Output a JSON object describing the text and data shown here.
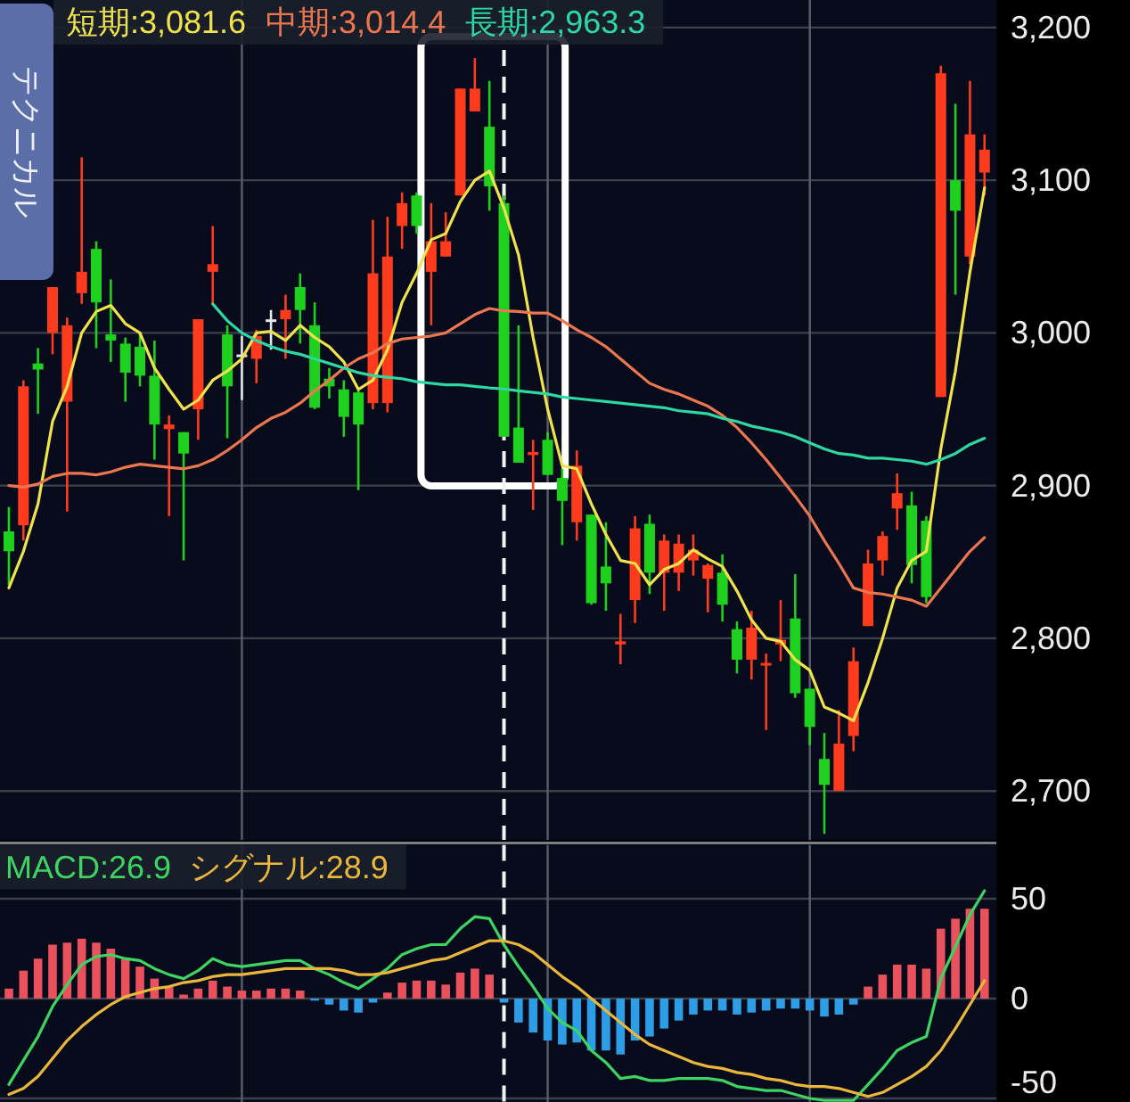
{
  "chart_data": [
    {
      "type": "candlestick",
      "categories": [
        null,
        null,
        null,
        null,
        null,
        null,
        null,
        null,
        null,
        null,
        null,
        null,
        null,
        null,
        null,
        null,
        null,
        null,
        null,
        null,
        null,
        null,
        null,
        null,
        null,
        null,
        null,
        null,
        null,
        null,
        null,
        null,
        null,
        null,
        null,
        null,
        null,
        null,
        null,
        null,
        null,
        null,
        null,
        null,
        null,
        null,
        null,
        null,
        null,
        null,
        null,
        null,
        null,
        null,
        null,
        null,
        null,
        null,
        null,
        null,
        null,
        null,
        null,
        null,
        null,
        null,
        null,
        null
      ],
      "ohlc": [
        [
          2870,
          2886,
          2835,
          2857
        ],
        [
          2874,
          2969,
          2864,
          2965
        ],
        [
          2980,
          2990,
          2947,
          2976
        ],
        [
          3000,
          3030,
          2986,
          3030
        ],
        [
          2955,
          3010,
          2883,
          3005
        ],
        [
          3026,
          3115,
          3019,
          3040
        ],
        [
          3055,
          3060,
          2990,
          3020
        ],
        [
          2999,
          3035,
          2981,
          2995
        ],
        [
          2993,
          2997,
          2955,
          2974
        ],
        [
          2991,
          3000,
          2965,
          2972
        ],
        [
          2972,
          2995,
          2917,
          2940
        ],
        [
          2937,
          2946,
          2880,
          2940
        ],
        [
          2935,
          2935,
          2851,
          2921
        ],
        [
          2950,
          3009,
          2930,
          3009
        ],
        [
          3040,
          3070,
          3019,
          3045
        ],
        [
          2999,
          3005,
          2931,
          2965
        ],
        [
          2985,
          2998,
          2956,
          2985
        ],
        [
          2983,
          3002,
          2967,
          2998
        ],
        [
          3008,
          3015,
          2989,
          3008
        ],
        [
          3009,
          3025,
          2983,
          3015
        ],
        [
          3030,
          3039,
          2993,
          3015
        ],
        [
          3005,
          3020,
          2950,
          2951
        ],
        [
          2970,
          2977,
          2957,
          2965
        ],
        [
          2963,
          2969,
          2932,
          2945
        ],
        [
          2961,
          2963,
          2897,
          2940
        ],
        [
          2954,
          3074,
          2950,
          3039
        ],
        [
          2954,
          3076,
          2948,
          3050
        ],
        [
          3070,
          3092,
          3055,
          3085
        ],
        [
          3090,
          3092,
          3065,
          3070
        ],
        [
          3040,
          3085,
          3005,
          3060
        ],
        [
          3050,
          3079,
          3050,
          3060
        ],
        [
          3090,
          3160,
          3090,
          3160
        ],
        [
          3145,
          3180,
          3145,
          3160
        ],
        [
          3135,
          3165,
          3080,
          3096
        ],
        [
          3085,
          3090,
          2932,
          2932
        ],
        [
          2938,
          3005,
          2915,
          2915
        ],
        [
          2920,
          2930,
          2884,
          2922
        ],
        [
          2930,
          2935,
          2907,
          2907
        ],
        [
          2905,
          2911,
          2861,
          2890
        ],
        [
          2876,
          2923,
          2864,
          2913
        ],
        [
          2881,
          2881,
          2822,
          2823
        ],
        [
          2847,
          2876,
          2818,
          2836
        ],
        [
          2796,
          2816,
          2783,
          2798
        ],
        [
          2825,
          2880,
          2810,
          2872
        ],
        [
          2875,
          2881,
          2829,
          2843
        ],
        [
          2843,
          2868,
          2818,
          2864
        ],
        [
          2843,
          2868,
          2831,
          2862
        ],
        [
          2851,
          2868,
          2841,
          2858
        ],
        [
          2839,
          2849,
          2817,
          2848
        ],
        [
          2843,
          2855,
          2811,
          2822
        ],
        [
          2806,
          2811,
          2777,
          2786
        ],
        [
          2786,
          2818,
          2773,
          2807
        ],
        [
          2782,
          2790,
          2740,
          2783
        ],
        [
          2796,
          2825,
          2785,
          2799
        ],
        [
          2813,
          2842,
          2761,
          2764
        ],
        [
          2767,
          2767,
          2730,
          2742
        ],
        [
          2721,
          2738,
          2672,
          2704
        ],
        [
          2700,
          2753,
          2700,
          2731
        ],
        [
          2736,
          2794,
          2726,
          2785
        ],
        [
          2808,
          2858,
          2808,
          2849
        ],
        [
          2851,
          2870,
          2841,
          2867
        ],
        [
          2885,
          2908,
          2871,
          2895
        ],
        [
          2887,
          2896,
          2836,
          2848
        ],
        [
          2877,
          2880,
          2823,
          2827
        ],
        [
          2958,
          3175,
          2958,
          3170
        ],
        [
          3100,
          3150,
          3025,
          3080
        ],
        [
          3050,
          3165,
          3045,
          3130
        ],
        [
          3105,
          3130,
          3090,
          3120
        ]
      ],
      "colors": [
        "#1fd11f",
        "#ff3b1e",
        "#1fd11f",
        "#ff3b1e",
        "#ff3b1e",
        "#ff3b1e",
        "#1fd11f",
        "#1fd11f",
        "#1fd11f",
        "#1fd11f",
        "#1fd11f",
        "#ff3b1e",
        "#1fd11f",
        "#ff3b1e",
        "#ff3b1e",
        "#1fd11f",
        "#e6e6e6",
        "#ff3b1e",
        "#e6e6e6",
        "#ff3b1e",
        "#1fd11f",
        "#1fd11f",
        "#1fd11f",
        "#1fd11f",
        "#1fd11f",
        "#ff3b1e",
        "#ff3b1e",
        "#ff3b1e",
        "#1fd11f",
        "#ff3b1e",
        "#ff3b1e",
        "#ff3b1e",
        "#ff3b1e",
        "#1fd11f",
        "#1fd11f",
        "#1fd11f",
        "#ff3b1e",
        "#1fd11f",
        "#1fd11f",
        "#ff3b1e",
        "#1fd11f",
        "#1fd11f",
        "#ff3b1e",
        "#ff3b1e",
        "#1fd11f",
        "#ff3b1e",
        "#ff3b1e",
        "#ff3b1e",
        "#ff3b1e",
        "#1fd11f",
        "#1fd11f",
        "#ff3b1e",
        "#ff3b1e",
        "#ff3b1e",
        "#1fd11f",
        "#1fd11f",
        "#1fd11f",
        "#ff3b1e",
        "#ff3b1e",
        "#ff3b1e",
        "#ff3b1e",
        "#ff3b1e",
        "#1fd11f",
        "#1fd11f",
        "#ff3b1e",
        "#1fd11f",
        "#ff3b1e",
        "#ff3b1e"
      ],
      "series": [
        {
          "type": "line",
          "name": "短期:3,081.6",
          "color": "#f0e24c",
          "values": [
            2833,
            2857,
            2888,
            2942,
            2965,
            3000,
            3014,
            3018,
            3006,
            3000,
            2977,
            2963,
            2950,
            2956,
            2969,
            2975,
            2983,
            3000,
            3001,
            2995,
            3005,
            2997,
            2991,
            2981,
            2963,
            2969,
            2989,
            3020,
            3039,
            3061,
            3065,
            3086,
            3100,
            3106,
            3081.6,
            3051,
            2997,
            2950,
            2913,
            2911,
            2888,
            2868,
            2851,
            2849,
            2835,
            2845,
            2849,
            2858,
            2852,
            2847,
            2831,
            2812,
            2800,
            2798,
            2786,
            2779,
            2755,
            2751,
            2746,
            2771,
            2800,
            2833,
            2851,
            2857,
            2924,
            2975,
            3040,
            3095
          ]
        },
        {
          "type": "line",
          "name": "中期:3,014.4",
          "color": "#ec7650",
          "values": [
            2900,
            2899,
            2901,
            2906,
            2908,
            2908,
            2907,
            2909,
            2912,
            2914,
            2913,
            2912,
            2911,
            2913,
            2917,
            2923,
            2930,
            2938,
            2944,
            2948,
            2954,
            2962,
            2969,
            2977,
            2983,
            2987,
            2993,
            2996,
            2997,
            2998,
            3000,
            3006,
            3012,
            3016,
            3014.4,
            3014,
            3013,
            3013,
            3008,
            3002,
            2997,
            2991,
            2983,
            2975,
            2967,
            2963,
            2960,
            2956,
            2952,
            2946,
            2938,
            2928,
            2917,
            2905,
            2893,
            2880,
            2864,
            2849,
            2833,
            2830,
            2829,
            2827,
            2825,
            2821,
            2833,
            2845,
            2857,
            2866
          ]
        },
        {
          "type": "line",
          "name": "長期:2,963.3",
          "color": "#2ed8a2",
          "values": [
            null,
            null,
            null,
            null,
            null,
            null,
            null,
            null,
            null,
            null,
            null,
            null,
            null,
            null,
            3019,
            3008,
            3000,
            2995,
            2991,
            2988,
            2986,
            2983,
            2980,
            2977,
            2974,
            2972,
            2971,
            2970,
            2968,
            2967,
            2966,
            2966,
            2965,
            2964,
            2963.3,
            2962,
            2961,
            2960,
            2958,
            2957,
            2956,
            2955,
            2954,
            2953,
            2952,
            2951,
            2949,
            2948,
            2947,
            2944,
            2942,
            2939,
            2937,
            2935,
            2932,
            2928,
            2924,
            2921,
            2920,
            2918,
            2918,
            2917,
            2916,
            2914,
            2917,
            2921,
            2927,
            2931
          ]
        }
      ],
      "ylim": [
        2668,
        3218
      ],
      "yticks": [
        {
          "value": 2700,
          "label": "2,700"
        },
        {
          "value": 2800,
          "label": "2,800"
        },
        {
          "value": 2900,
          "label": "2,900"
        },
        {
          "value": 3000,
          "label": "3,000"
        },
        {
          "value": 3100,
          "label": "3,100"
        },
        {
          "value": 3200,
          "label": "3,200"
        }
      ],
      "grid": true,
      "legend": "top left",
      "tick_labels": "y",
      "annotations": [
        "テクニカル"
      ]
    },
    {
      "type": "bar",
      "categories": [
        null,
        null,
        null,
        null,
        null,
        null,
        null,
        null,
        null,
        null,
        null,
        null,
        null,
        null,
        null,
        null,
        null,
        null,
        null,
        null,
        null,
        null,
        null,
        null,
        null,
        null,
        null,
        null,
        null,
        null,
        null,
        null,
        null,
        null,
        null,
        null,
        null,
        null,
        null,
        null,
        null,
        null,
        null,
        null,
        null,
        null,
        null,
        null,
        null,
        null,
        null,
        null,
        null,
        null,
        null,
        null,
        null,
        null,
        null,
        null,
        null,
        null,
        null,
        null,
        null,
        null,
        null,
        null
      ],
      "series": [
        {
          "values": [
            5,
            14,
            20,
            27,
            28,
            30,
            28,
            25,
            20,
            16,
            10,
            6,
            2,
            5,
            9,
            6,
            4,
            4,
            5,
            5,
            4,
            -1,
            -3,
            -6,
            -7,
            -2,
            3,
            8,
            9,
            9,
            7,
            13,
            15,
            12,
            -2,
            -12,
            -17,
            -21,
            -23,
            -22,
            -26,
            -26,
            -28,
            -21,
            -19,
            -15,
            -11,
            -8,
            -6,
            -6,
            -8,
            -7,
            -6,
            -5,
            -5,
            -6,
            -9,
            -8,
            -3,
            6,
            12,
            17,
            17,
            15,
            35,
            40,
            45,
            45
          ],
          "colors": [
            "#e9525c",
            "#e9525c",
            "#e9525c",
            "#e9525c",
            "#e9525c",
            "#e9525c",
            "#e9525c",
            "#e9525c",
            "#e9525c",
            "#e9525c",
            "#e9525c",
            "#e9525c",
            "#e9525c",
            "#e9525c",
            "#e9525c",
            "#e9525c",
            "#e9525c",
            "#e9525c",
            "#e9525c",
            "#e9525c",
            "#e9525c",
            "#2d9de6",
            "#2d9de6",
            "#2d9de6",
            "#2d9de6",
            "#2d9de6",
            "#e9525c",
            "#e9525c",
            "#e9525c",
            "#e9525c",
            "#e9525c",
            "#e9525c",
            "#e9525c",
            "#e9525c",
            "#2d9de6",
            "#2d9de6",
            "#2d9de6",
            "#2d9de6",
            "#2d9de6",
            "#2d9de6",
            "#2d9de6",
            "#2d9de6",
            "#2d9de6",
            "#2d9de6",
            "#2d9de6",
            "#2d9de6",
            "#2d9de6",
            "#2d9de6",
            "#2d9de6",
            "#2d9de6",
            "#2d9de6",
            "#2d9de6",
            "#2d9de6",
            "#2d9de6",
            "#2d9de6",
            "#2d9de6",
            "#2d9de6",
            "#2d9de6",
            "#2d9de6",
            "#e9525c",
            "#e9525c",
            "#e9525c",
            "#e9525c",
            "#e9525c",
            "#e9525c",
            "#e9525c",
            "#e9525c",
            "#e9525c"
          ]
        },
        {
          "type": "line",
          "name": "MACD:26.9",
          "color": "#3ed462",
          "values": [
            -43,
            -31,
            -19,
            -4,
            7,
            17,
            21,
            22,
            20,
            19,
            15,
            12,
            10,
            14,
            20,
            17,
            16,
            17,
            18,
            19,
            19,
            15,
            12,
            8,
            5,
            10,
            15,
            22,
            25,
            27,
            27,
            35,
            41,
            40,
            26.9,
            16,
            6,
            -5,
            -12,
            -16,
            -26,
            -32,
            -40,
            -39,
            -41,
            -41,
            -40,
            -40,
            -40,
            -41,
            -44,
            -45,
            -46,
            -46,
            -48,
            -50,
            -51,
            -51,
            -51,
            -43,
            -35,
            -26,
            -22,
            -19,
            10,
            26,
            42,
            54
          ]
        },
        {
          "type": "line",
          "name": "シグナル:28.9",
          "color": "#eab63c",
          "values": [
            -48,
            -45,
            -39,
            -30,
            -21,
            -14,
            -8,
            -3,
            1,
            3,
            5,
            6,
            8,
            9,
            11,
            12,
            12,
            13,
            14,
            15,
            15,
            15,
            15,
            14,
            12,
            12,
            13,
            15,
            17,
            19,
            20,
            23,
            26,
            29,
            28.9,
            27,
            23,
            17,
            11,
            6,
            0,
            -6,
            -12,
            -18,
            -23,
            -26,
            -29,
            -32,
            -34,
            -35,
            -37,
            -38,
            -40,
            -41,
            -43,
            -44,
            -44,
            -45,
            -47,
            -49,
            -47,
            -43,
            -39,
            -34,
            -26,
            -15,
            -3,
            9
          ]
        }
      ],
      "ylim": [
        -52,
        77
      ],
      "yticks": [
        -50,
        0,
        50
      ],
      "grid": true,
      "legend": "top left",
      "tick_labels": "y"
    }
  ]
}
